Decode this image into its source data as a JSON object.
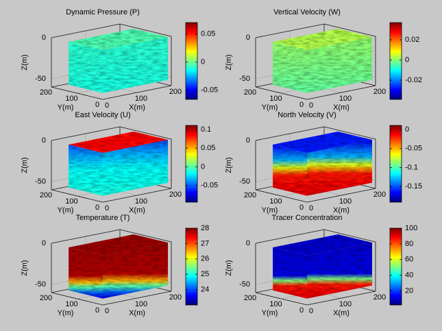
{
  "chart_data": [
    {
      "type": "volume",
      "title": "Dynamic Pressure (P)",
      "xlabel": "X(m)",
      "ylabel": "Y(m)",
      "zlabel": "Z(m)",
      "xlim": [
        0,
        200
      ],
      "ylim": [
        0,
        200
      ],
      "zlim": [
        -60,
        0
      ],
      "xticks": [
        0,
        100,
        200
      ],
      "yticks": [
        0,
        100,
        200
      ],
      "zticks": [
        -50,
        0
      ],
      "colorbar": {
        "colormap": "jet",
        "clim": [
          -0.066,
          0.07
        ],
        "ticks": [
          -0.05,
          0,
          0.05
        ]
      }
    },
    {
      "type": "volume",
      "title": "Vertical Velocity (W)",
      "xlabel": "X(m)",
      "ylabel": "Y(m)",
      "zlabel": "Z(m)",
      "xlim": [
        0,
        200
      ],
      "ylim": [
        0,
        200
      ],
      "zlim": [
        -60,
        0
      ],
      "xticks": [
        0,
        100,
        200
      ],
      "yticks": [
        0,
        100,
        200
      ],
      "zticks": [
        -50,
        0
      ],
      "colorbar": {
        "colormap": "jet",
        "clim": [
          -0.039,
          0.037
        ],
        "ticks": [
          -0.02,
          0,
          0.02
        ]
      }
    },
    {
      "type": "volume",
      "title": "East Velocity (U)",
      "xlabel": "X(m)",
      "ylabel": "Y(m)",
      "zlabel": "Z(m)",
      "xlim": [
        0,
        200
      ],
      "ylim": [
        0,
        200
      ],
      "zlim": [
        -60,
        0
      ],
      "xticks": [
        0,
        100,
        200
      ],
      "yticks": [
        0,
        100,
        200
      ],
      "zticks": [
        -50,
        0
      ],
      "colorbar": {
        "colormap": "jet",
        "clim": [
          -0.095,
          0.111
        ],
        "ticks": [
          -0.05,
          0,
          0.05,
          0.1
        ]
      }
    },
    {
      "type": "volume",
      "title": "North Velocity (V)",
      "xlabel": "X(m)",
      "ylabel": "Y(m)",
      "zlabel": "Z(m)",
      "xlim": [
        0,
        200
      ],
      "ylim": [
        0,
        200
      ],
      "zlim": [
        -60,
        0
      ],
      "xticks": [
        0,
        100,
        200
      ],
      "yticks": [
        0,
        100,
        200
      ],
      "zticks": [
        -50,
        0
      ],
      "colorbar": {
        "colormap": "jet",
        "clim": [
          -0.191,
          0.011
        ],
        "ticks": [
          -0.15,
          -0.1,
          -0.05,
          0
        ]
      }
    },
    {
      "type": "volume",
      "title": "Temperature (T)",
      "xlabel": "X(m)",
      "ylabel": "Y(m)",
      "zlabel": "Z(m)",
      "xlim": [
        0,
        200
      ],
      "ylim": [
        0,
        200
      ],
      "zlim": [
        -60,
        0
      ],
      "xticks": [
        0,
        100,
        200
      ],
      "yticks": [
        0,
        100,
        200
      ],
      "zticks": [
        -50,
        0
      ],
      "colorbar": {
        "colormap": "jet",
        "clim": [
          23,
          28
        ],
        "ticks": [
          24,
          25,
          26,
          27,
          28
        ]
      }
    },
    {
      "type": "volume",
      "title": "Tracer Concentration",
      "xlabel": "X(m)",
      "ylabel": "Y(m)",
      "zlabel": "Z(m)",
      "xlim": [
        0,
        200
      ],
      "ylim": [
        0,
        200
      ],
      "zlim": [
        -60,
        0
      ],
      "xticks": [
        0,
        100,
        200
      ],
      "yticks": [
        0,
        100,
        200
      ],
      "zticks": [
        -50,
        0
      ],
      "colorbar": {
        "colormap": "jet",
        "clim": [
          2,
          100
        ],
        "ticks": [
          20,
          40,
          60,
          80,
          100
        ]
      }
    }
  ]
}
